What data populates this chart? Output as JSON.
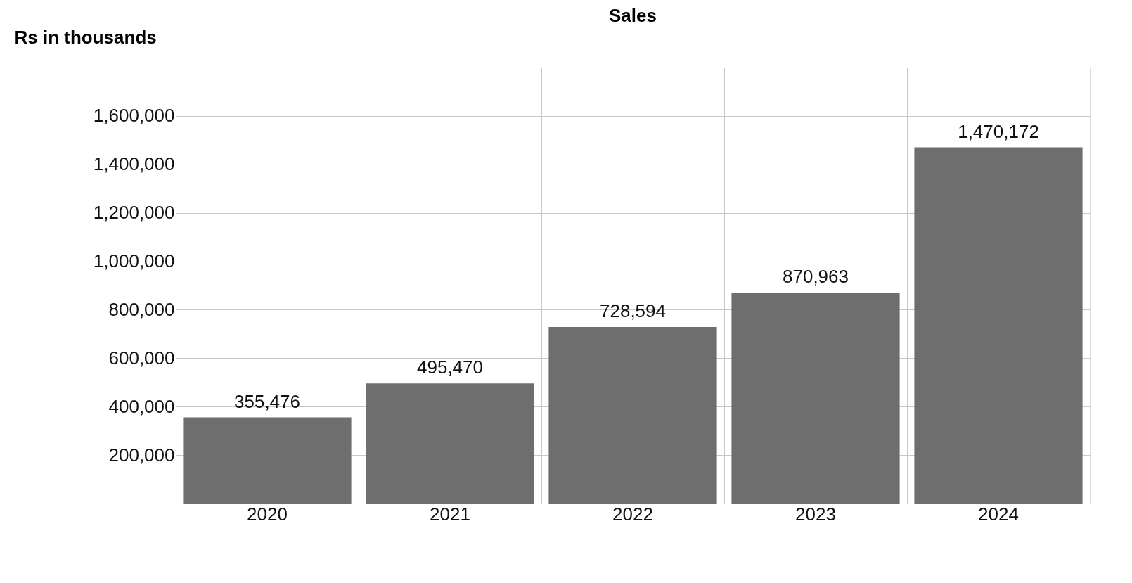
{
  "chart_data": {
    "type": "bar",
    "title": "Sales",
    "ylabel": "Rs in thousands",
    "categories": [
      "2020",
      "2021",
      "2022",
      "2023",
      "2024"
    ],
    "values": [
      355476,
      495470,
      728594,
      870963,
      1470172
    ],
    "color": "#6e6e6e",
    "value_labels": [
      "355,476",
      "495,470",
      "728,594",
      "870,963",
      "1,470,172"
    ],
    "ylim": [
      0,
      1800000
    ],
    "yticks": [
      {
        "value": 200000,
        "label": "200,000"
      },
      {
        "value": 400000,
        "label": "400,000"
      },
      {
        "value": 600000,
        "label": "600,000"
      },
      {
        "value": 800000,
        "label": "800,000"
      },
      {
        "value": 1000000,
        "label": "1,000,000"
      },
      {
        "value": 1200000,
        "label": "1,200,000"
      },
      {
        "value": 1400000,
        "label": "1,400,000"
      },
      {
        "value": 1600000,
        "label": "1,600,000"
      }
    ],
    "grid": true
  }
}
